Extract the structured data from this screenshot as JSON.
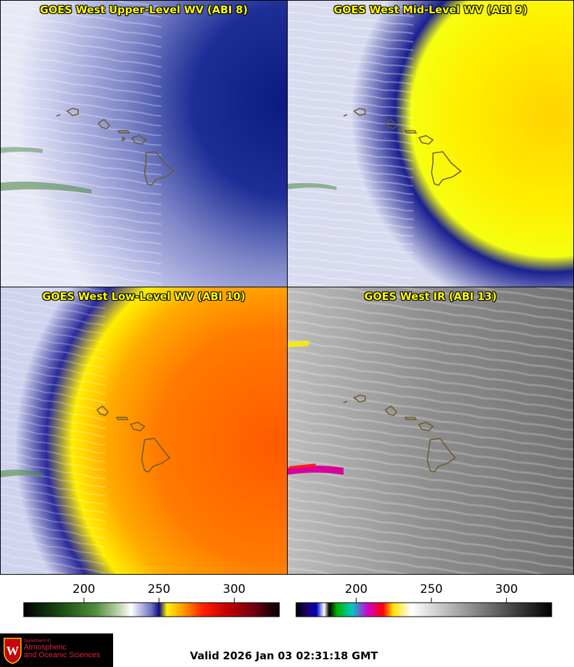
{
  "panels": [
    {
      "title": "GOES West Upper-Level WV (ABI 8)",
      "icon": "water-vapor-image"
    },
    {
      "title": "GOES West Mid-Level WV (ABI 9)",
      "icon": "water-vapor-image"
    },
    {
      "title": "GOES West Low-Level WV (ABI 10)",
      "icon": "water-vapor-image"
    },
    {
      "title": "GOES West IR (ABI 13)",
      "icon": "infrared-image"
    }
  ],
  "colorbars": {
    "wv": {
      "ticks": [
        "200",
        "250",
        "300"
      ],
      "tick_values": [
        200,
        250,
        300
      ],
      "range": [
        160,
        330
      ]
    },
    "ir": {
      "ticks": [
        "200",
        "250",
        "300"
      ],
      "tick_values": [
        200,
        250,
        300
      ],
      "range": [
        160,
        330
      ]
    }
  },
  "logo": {
    "line1": "Department of",
    "line2": "Atmospheric",
    "line3": "and Oceanic Sciences",
    "icon": "uw-crest-icon"
  },
  "valid_time": "Valid 2026 Jan 03 02:31:18 GMT"
}
